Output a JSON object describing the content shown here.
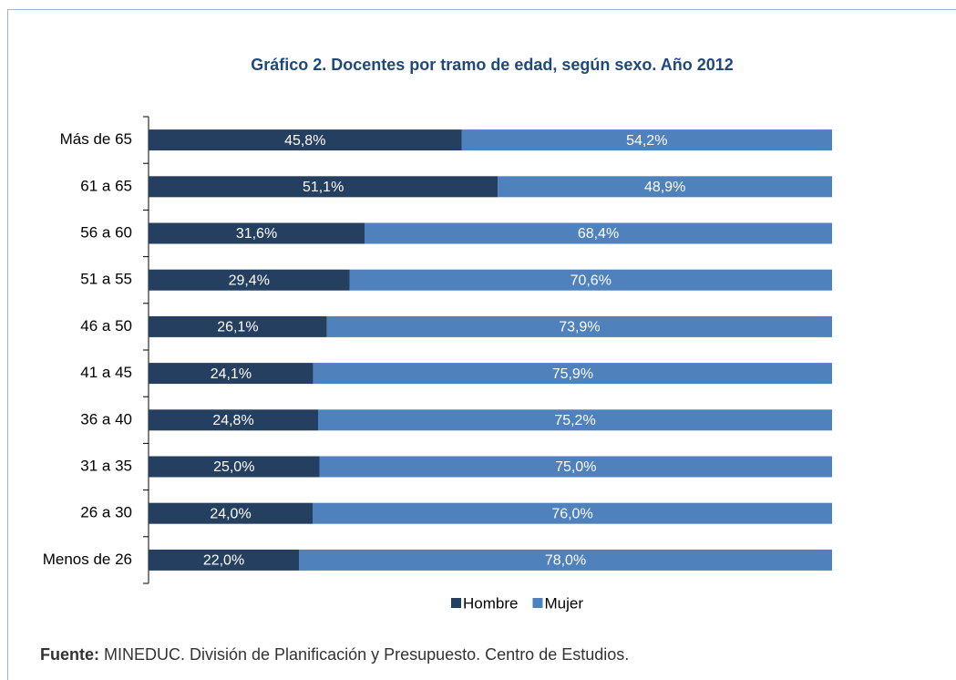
{
  "chart_data": {
    "type": "stacked-bar-horizontal",
    "title": "Gráfico 2. Docentes por tramo de edad, según sexo. Año 2012",
    "categories": [
      "Más de 65",
      "61 a 65",
      "56 a 60",
      "51 a 55",
      "46 a 50",
      "41 a 45",
      "36 a 40",
      "31 a 35",
      "26 a 30",
      "Menos de 26"
    ],
    "series": [
      {
        "name": "Hombre",
        "color": "#243f60",
        "values": [
          45.8,
          51.1,
          31.6,
          29.4,
          26.1,
          24.1,
          24.8,
          25.0,
          24.0,
          22.0
        ],
        "value_labels": [
          "45,8%",
          "51,1%",
          "31,6%",
          "29,4%",
          "26,1%",
          "24,1%",
          "24,8%",
          "25,0%",
          "24,0%",
          "22,0%"
        ]
      },
      {
        "name": "Mujer",
        "color": "#4f81bd",
        "values": [
          54.2,
          48.9,
          68.4,
          70.6,
          73.9,
          75.9,
          75.2,
          75.0,
          76.0,
          78.0
        ],
        "value_labels": [
          "54,2%",
          "48,9%",
          "68,4%",
          "70,6%",
          "73,9%",
          "75,9%",
          "75,2%",
          "75,0%",
          "76,0%",
          "78,0%"
        ]
      }
    ],
    "xlim": [
      0,
      100
    ],
    "legend": "bottom",
    "source": {
      "label": "Fuente:",
      "text": "MINEDUC. División de Planificación y Presupuesto. Centro de Estudios."
    }
  }
}
